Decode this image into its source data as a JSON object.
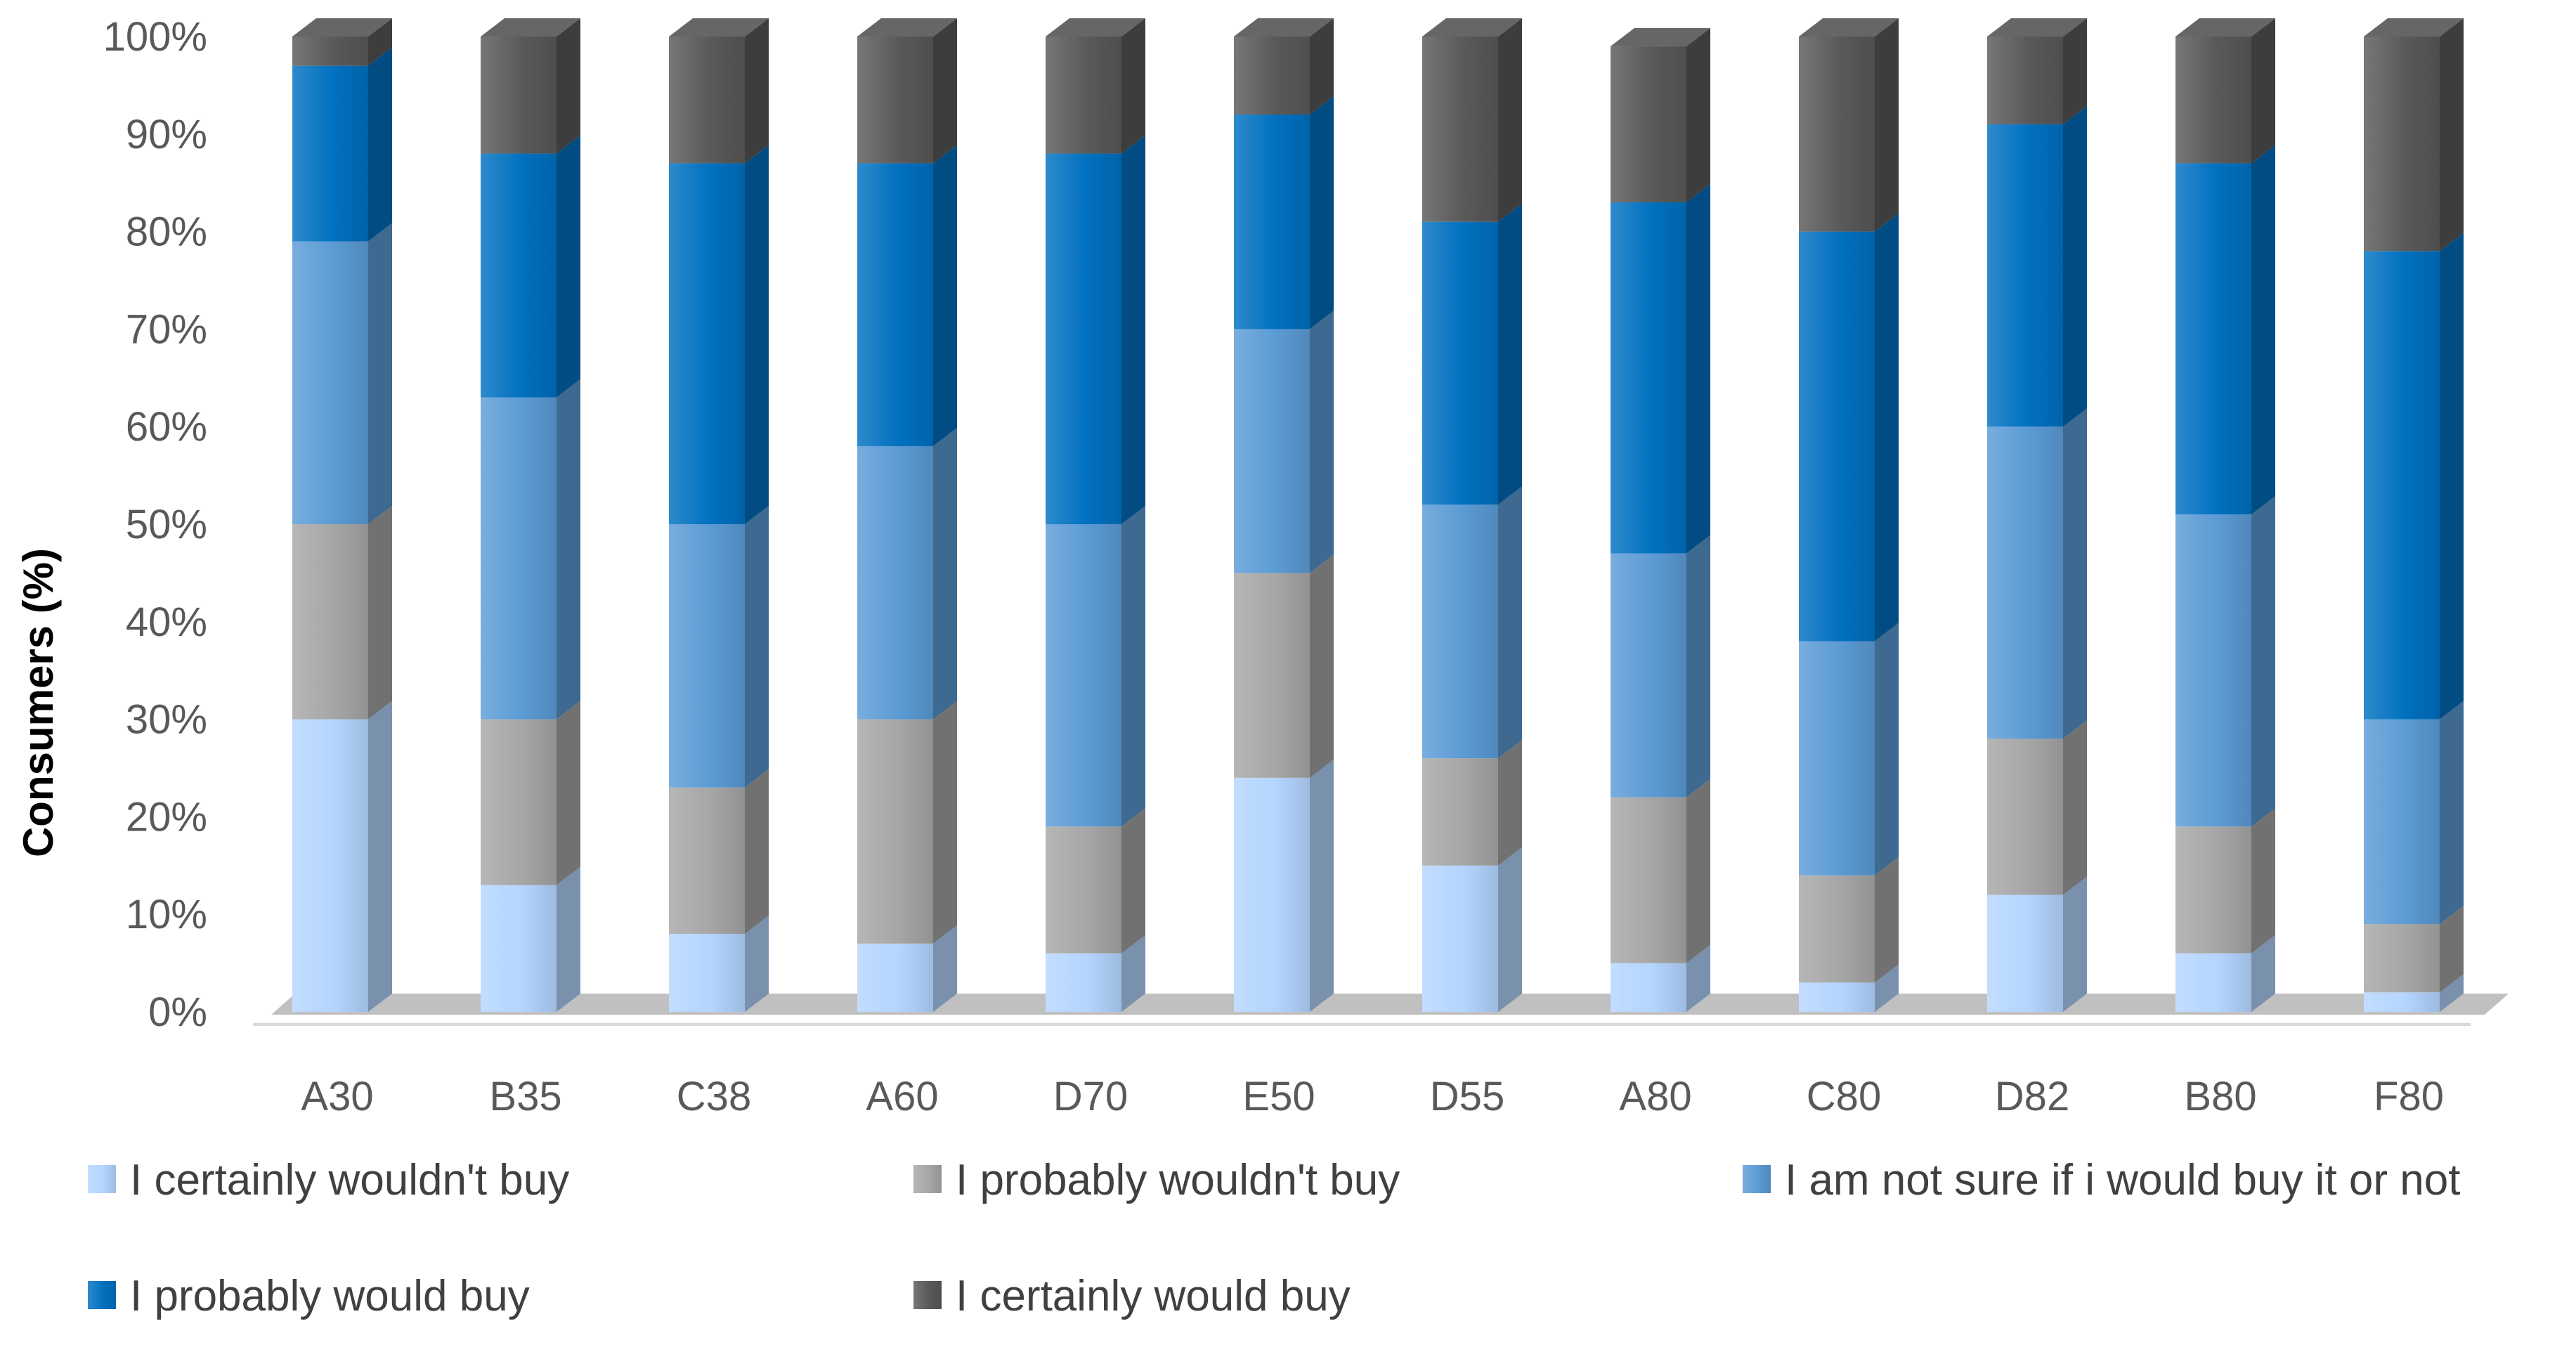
{
  "chart_data": {
    "type": "bar",
    "stacked": true,
    "three_d": true,
    "title": "",
    "xlabel": "",
    "ylabel": "Consumers (%)",
    "ylim": [
      0,
      100
    ],
    "yticks": [
      "0%",
      "10%",
      "20%",
      "30%",
      "40%",
      "50%",
      "60%",
      "70%",
      "80%",
      "90%",
      "100%"
    ],
    "categories": [
      "A30",
      "B35",
      "C38",
      "A60",
      "D70",
      "E50",
      "D55",
      "A80",
      "C80",
      "D82",
      "B80",
      "F80"
    ],
    "series": [
      {
        "name": "I certainly wouldn't buy",
        "color": "#b4d5ff",
        "values": [
          30,
          13,
          8,
          7,
          6,
          24,
          15,
          5,
          3,
          12,
          6,
          2
        ]
      },
      {
        "name": "I probably wouldn't buy",
        "color": "#a6a6a6",
        "values": [
          20,
          17,
          15,
          23,
          13,
          21,
          11,
          17,
          11,
          16,
          13,
          7
        ]
      },
      {
        "name": "I am not sure if i would buy it or not",
        "color": "#5b9bd5",
        "values": [
          29,
          33,
          27,
          28,
          31,
          25,
          26,
          25,
          24,
          32,
          32,
          21
        ]
      },
      {
        "name": "I probably would buy",
        "color": "#0070c0",
        "values": [
          18,
          25,
          37,
          29,
          38,
          22,
          29,
          36,
          42,
          31,
          36,
          48
        ]
      },
      {
        "name": "I certainly would buy",
        "color": "#595959",
        "values": [
          3,
          12,
          13,
          13,
          12,
          8,
          19,
          16,
          20,
          9,
          13,
          22
        ]
      }
    ],
    "legend_position": "bottom",
    "grid": false
  }
}
